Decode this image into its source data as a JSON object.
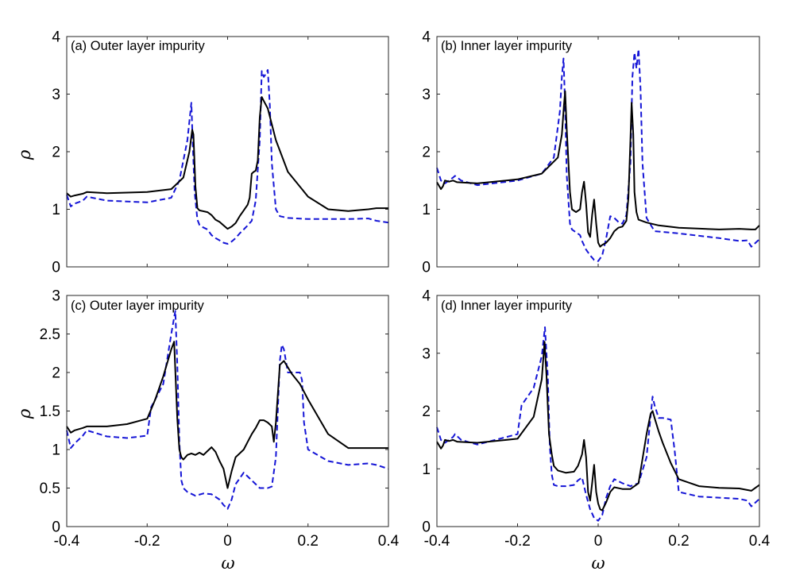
{
  "chart_data": [
    {
      "type": "line",
      "title": "(a) Outer layer impurity",
      "xlabel": "",
      "ylabel": "ρ",
      "xlim": [
        -0.4,
        0.4
      ],
      "ylim": [
        0,
        4
      ],
      "xticks": [
        -0.4,
        -0.2,
        0,
        0.2,
        0.4
      ],
      "xtick_labels": [
        "",
        "",
        "",
        "",
        ""
      ],
      "yticks": [
        0,
        1,
        2,
        3,
        4
      ],
      "ytick_labels": [
        "0",
        "1",
        "2",
        "3",
        "4"
      ],
      "series": [
        {
          "name": "solid",
          "color": "#000000",
          "dash": "solid",
          "x": [
            -0.4,
            -0.39,
            -0.38,
            -0.36,
            -0.35,
            -0.3,
            -0.2,
            -0.14,
            -0.11,
            -0.095,
            -0.088,
            -0.085,
            -0.08,
            -0.075,
            -0.07,
            -0.05,
            -0.04,
            -0.03,
            -0.02,
            -0.01,
            0,
            0.01,
            0.02,
            0.03,
            0.04,
            0.05,
            0.055,
            0.06,
            0.065,
            0.07,
            0.075,
            0.08,
            0.085,
            0.09,
            0.1,
            0.12,
            0.15,
            0.2,
            0.25,
            0.3,
            0.35,
            0.37,
            0.4
          ],
          "y": [
            1.28,
            1.22,
            1.24,
            1.27,
            1.3,
            1.28,
            1.3,
            1.35,
            1.55,
            2.0,
            2.38,
            2.3,
            1.4,
            1.02,
            0.98,
            0.95,
            0.9,
            0.82,
            0.78,
            0.72,
            0.66,
            0.7,
            0.76,
            0.88,
            0.98,
            1.08,
            1.2,
            1.62,
            1.65,
            1.67,
            1.85,
            2.6,
            2.95,
            2.88,
            2.75,
            2.2,
            1.65,
            1.22,
            1.0,
            0.97,
            1.0,
            1.02,
            1.02
          ]
        },
        {
          "name": "dashed",
          "color": "#1515d6",
          "dash": "dashed",
          "x": [
            -0.4,
            -0.39,
            -0.38,
            -0.36,
            -0.35,
            -0.3,
            -0.2,
            -0.14,
            -0.12,
            -0.1,
            -0.09,
            -0.087,
            -0.082,
            -0.075,
            -0.07,
            -0.065,
            -0.05,
            -0.04,
            -0.03,
            -0.02,
            -0.01,
            0,
            0.01,
            0.02,
            0.03,
            0.04,
            0.05,
            0.06,
            0.07,
            0.08,
            0.085,
            0.09,
            0.095,
            0.1,
            0.105,
            0.11,
            0.12,
            0.13,
            0.15,
            0.2,
            0.25,
            0.3,
            0.35,
            0.37,
            0.4
          ],
          "y": [
            1.25,
            1.05,
            1.1,
            1.15,
            1.22,
            1.15,
            1.12,
            1.2,
            1.5,
            2.2,
            2.85,
            2.2,
            1.3,
            0.82,
            0.73,
            0.7,
            0.65,
            0.55,
            0.5,
            0.46,
            0.42,
            0.4,
            0.44,
            0.5,
            0.58,
            0.65,
            0.72,
            0.8,
            1.15,
            2.2,
            3.4,
            3.3,
            3.35,
            3.42,
            2.8,
            1.8,
            1.0,
            0.88,
            0.85,
            0.83,
            0.83,
            0.83,
            0.84,
            0.8,
            0.77
          ]
        }
      ]
    },
    {
      "type": "line",
      "title": "(b) Inner layer impurity",
      "xlabel": "",
      "ylabel": "",
      "xlim": [
        -0.4,
        0.4
      ],
      "ylim": [
        0,
        4
      ],
      "xticks": [
        -0.4,
        -0.2,
        0,
        0.2,
        0.4
      ],
      "xtick_labels": [
        "",
        "",
        "",
        "",
        ""
      ],
      "yticks": [
        0,
        1,
        2,
        3,
        4
      ],
      "ytick_labels": [
        "0",
        "1",
        "2",
        "3",
        "4"
      ],
      "series": [
        {
          "name": "solid",
          "color": "#000000",
          "dash": "solid",
          "x": [
            -0.4,
            -0.39,
            -0.385,
            -0.38,
            -0.37,
            -0.36,
            -0.35,
            -0.3,
            -0.2,
            -0.14,
            -0.1,
            -0.09,
            -0.085,
            -0.082,
            -0.078,
            -0.07,
            -0.065,
            -0.055,
            -0.045,
            -0.04,
            -0.035,
            -0.03,
            -0.025,
            -0.02,
            -0.015,
            -0.01,
            -0.005,
            0,
            0.005,
            0.01,
            0.02,
            0.03,
            0.04,
            0.05,
            0.06,
            0.07,
            0.075,
            0.08,
            0.083,
            0.087,
            0.09,
            0.095,
            0.1,
            0.12,
            0.15,
            0.2,
            0.3,
            0.35,
            0.38,
            0.39,
            0.4
          ],
          "y": [
            1.47,
            1.35,
            1.4,
            1.5,
            1.48,
            1.5,
            1.47,
            1.45,
            1.52,
            1.62,
            1.9,
            2.3,
            2.8,
            3.05,
            2.4,
            1.3,
            1.0,
            0.95,
            1.0,
            1.3,
            1.48,
            1.1,
            0.6,
            0.52,
            0.9,
            1.17,
            0.75,
            0.42,
            0.35,
            0.38,
            0.42,
            0.5,
            0.62,
            0.68,
            0.7,
            0.8,
            1.2,
            2.2,
            2.85,
            2.3,
            1.3,
            0.95,
            0.82,
            0.77,
            0.72,
            0.68,
            0.65,
            0.66,
            0.65,
            0.65,
            0.72
          ]
        },
        {
          "name": "dashed",
          "color": "#1515d6",
          "dash": "dashed",
          "x": [
            -0.4,
            -0.39,
            -0.38,
            -0.37,
            -0.36,
            -0.355,
            -0.34,
            -0.3,
            -0.2,
            -0.14,
            -0.11,
            -0.095,
            -0.09,
            -0.086,
            -0.082,
            -0.078,
            -0.07,
            -0.065,
            -0.055,
            -0.045,
            -0.04,
            -0.03,
            -0.02,
            -0.01,
            0,
            0.01,
            0.02,
            0.03,
            0.04,
            0.05,
            0.06,
            0.07,
            0.08,
            0.085,
            0.09,
            0.095,
            0.1,
            0.105,
            0.11,
            0.12,
            0.14,
            0.2,
            0.3,
            0.35,
            0.37,
            0.38,
            0.4
          ],
          "y": [
            1.72,
            1.5,
            1.45,
            1.5,
            1.55,
            1.58,
            1.5,
            1.42,
            1.5,
            1.62,
            1.9,
            2.7,
            3.3,
            3.62,
            2.8,
            1.6,
            0.75,
            0.65,
            0.6,
            0.55,
            0.45,
            0.3,
            0.2,
            0.12,
            0.1,
            0.2,
            0.5,
            0.88,
            0.85,
            0.78,
            0.75,
            0.9,
            1.8,
            3.3,
            3.72,
            3.45,
            3.78,
            3.1,
            1.8,
            0.85,
            0.62,
            0.58,
            0.5,
            0.45,
            0.46,
            0.35,
            0.48
          ]
        }
      ]
    },
    {
      "type": "line",
      "title": "(c) Outer layer impurity",
      "xlabel": "ω",
      "ylabel": "ρ",
      "xlim": [
        -0.4,
        0.4
      ],
      "ylim": [
        0,
        3
      ],
      "xticks": [
        -0.4,
        -0.2,
        0,
        0.2,
        0.4
      ],
      "xtick_labels": [
        "-0.4",
        "-0.2",
        "0",
        "0.2",
        "0.4"
      ],
      "yticks": [
        0,
        0.5,
        1,
        1.5,
        2,
        2.5,
        3
      ],
      "ytick_labels": [
        "0",
        "0.5",
        "1",
        "1.5",
        "2",
        "2.5",
        "3"
      ],
      "series": [
        {
          "name": "solid",
          "color": "#000000",
          "dash": "solid",
          "x": [
            -0.4,
            -0.39,
            -0.38,
            -0.36,
            -0.35,
            -0.3,
            -0.25,
            -0.2,
            -0.18,
            -0.16,
            -0.14,
            -0.133,
            -0.125,
            -0.12,
            -0.115,
            -0.11,
            -0.1,
            -0.09,
            -0.08,
            -0.07,
            -0.06,
            -0.05,
            -0.04,
            -0.03,
            -0.02,
            -0.01,
            0,
            0.01,
            0.02,
            0.03,
            0.04,
            0.05,
            0.06,
            0.07,
            0.08,
            0.09,
            0.1,
            0.11,
            0.115,
            0.12,
            0.13,
            0.14,
            0.16,
            0.18,
            0.2,
            0.25,
            0.3,
            0.35,
            0.37,
            0.4
          ],
          "y": [
            1.3,
            1.22,
            1.25,
            1.28,
            1.3,
            1.3,
            1.33,
            1.4,
            1.65,
            1.95,
            2.3,
            2.4,
            1.4,
            1.0,
            0.9,
            0.87,
            0.93,
            0.95,
            0.93,
            0.96,
            0.93,
            0.98,
            1.03,
            0.97,
            0.85,
            0.75,
            0.5,
            0.72,
            0.9,
            0.95,
            1.0,
            1.1,
            1.2,
            1.28,
            1.38,
            1.38,
            1.35,
            1.3,
            1.1,
            1.35,
            2.1,
            2.15,
            1.98,
            1.85,
            1.65,
            1.2,
            1.02,
            1.02,
            1.02,
            1.02
          ]
        },
        {
          "name": "dashed",
          "color": "#1515d6",
          "dash": "dashed",
          "x": [
            -0.4,
            -0.39,
            -0.38,
            -0.36,
            -0.35,
            -0.3,
            -0.25,
            -0.2,
            -0.19,
            -0.16,
            -0.14,
            -0.13,
            -0.125,
            -0.12,
            -0.115,
            -0.11,
            -0.1,
            -0.08,
            -0.06,
            -0.04,
            -0.02,
            -0.01,
            0,
            0.01,
            0.02,
            0.04,
            0.06,
            0.08,
            0.1,
            0.11,
            0.12,
            0.13,
            0.135,
            0.14,
            0.15,
            0.16,
            0.18,
            0.185,
            0.19,
            0.2,
            0.25,
            0.3,
            0.35,
            0.37,
            0.4
          ],
          "y": [
            1.25,
            1.02,
            1.08,
            1.18,
            1.25,
            1.17,
            1.15,
            1.18,
            1.55,
            1.85,
            2.5,
            2.8,
            2.1,
            1.1,
            0.6,
            0.5,
            0.45,
            0.4,
            0.43,
            0.42,
            0.35,
            0.28,
            0.23,
            0.35,
            0.55,
            0.7,
            0.6,
            0.5,
            0.5,
            0.52,
            0.9,
            2.15,
            2.36,
            2.3,
            2.0,
            2.0,
            2.0,
            1.9,
            1.35,
            1.0,
            0.85,
            0.8,
            0.82,
            0.8,
            0.75
          ]
        }
      ]
    },
    {
      "type": "line",
      "title": "(d) Inner layer impurity",
      "xlabel": "ω",
      "ylabel": "",
      "xlim": [
        -0.4,
        0.4
      ],
      "ylim": [
        0,
        4
      ],
      "xticks": [
        -0.4,
        -0.2,
        0,
        0.2,
        0.4
      ],
      "xtick_labels": [
        "-0.4",
        "-0.2",
        "0",
        "0.2",
        "0.4"
      ],
      "yticks": [
        0,
        1,
        2,
        3,
        4
      ],
      "ytick_labels": [
        "0",
        "1",
        "2",
        "3",
        "4"
      ],
      "series": [
        {
          "name": "solid",
          "color": "#000000",
          "dash": "solid",
          "x": [
            -0.4,
            -0.39,
            -0.385,
            -0.38,
            -0.37,
            -0.36,
            -0.35,
            -0.3,
            -0.2,
            -0.16,
            -0.14,
            -0.133,
            -0.128,
            -0.122,
            -0.115,
            -0.11,
            -0.1,
            -0.08,
            -0.06,
            -0.05,
            -0.04,
            -0.035,
            -0.03,
            -0.025,
            -0.02,
            -0.015,
            -0.01,
            -0.005,
            0,
            0.005,
            0.01,
            0.02,
            0.03,
            0.04,
            0.06,
            0.08,
            0.1,
            0.12,
            0.13,
            0.135,
            0.14,
            0.15,
            0.16,
            0.18,
            0.2,
            0.25,
            0.3,
            0.35,
            0.38,
            0.4
          ],
          "y": [
            1.47,
            1.35,
            1.4,
            1.5,
            1.48,
            1.5,
            1.47,
            1.45,
            1.52,
            1.9,
            2.55,
            3.2,
            2.6,
            1.6,
            1.25,
            1.05,
            0.97,
            0.93,
            0.95,
            1.05,
            1.25,
            1.5,
            1.2,
            0.6,
            0.45,
            0.75,
            1.07,
            0.6,
            0.4,
            0.3,
            0.28,
            0.42,
            0.6,
            0.68,
            0.65,
            0.65,
            0.75,
            1.6,
            1.95,
            2.0,
            1.88,
            1.65,
            1.45,
            1.1,
            0.82,
            0.7,
            0.67,
            0.66,
            0.62,
            0.72
          ]
        },
        {
          "name": "dashed",
          "color": "#1515d6",
          "dash": "dashed",
          "x": [
            -0.4,
            -0.39,
            -0.38,
            -0.37,
            -0.36,
            -0.355,
            -0.34,
            -0.3,
            -0.2,
            -0.19,
            -0.16,
            -0.14,
            -0.132,
            -0.125,
            -0.12,
            -0.115,
            -0.11,
            -0.1,
            -0.08,
            -0.06,
            -0.05,
            -0.04,
            -0.03,
            -0.02,
            -0.01,
            0,
            0.01,
            0.02,
            0.03,
            0.04,
            0.06,
            0.08,
            0.1,
            0.12,
            0.13,
            0.135,
            0.14,
            0.15,
            0.16,
            0.18,
            0.19,
            0.2,
            0.25,
            0.3,
            0.35,
            0.37,
            0.38,
            0.4
          ],
          "y": [
            1.72,
            1.5,
            1.45,
            1.5,
            1.55,
            1.6,
            1.5,
            1.42,
            1.6,
            2.1,
            2.4,
            2.95,
            3.45,
            2.6,
            1.4,
            0.9,
            0.72,
            0.7,
            0.7,
            0.72,
            0.8,
            0.85,
            0.55,
            0.3,
            0.15,
            0.1,
            0.2,
            0.5,
            0.7,
            0.82,
            0.75,
            0.7,
            0.75,
            1.2,
            1.9,
            2.25,
            2.1,
            1.88,
            1.88,
            1.85,
            1.3,
            0.6,
            0.52,
            0.5,
            0.48,
            0.45,
            0.35,
            0.48
          ]
        }
      ]
    }
  ]
}
